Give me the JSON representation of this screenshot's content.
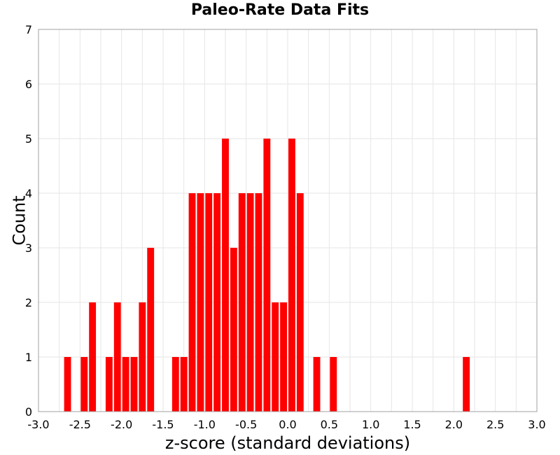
{
  "chart_data": {
    "type": "bar",
    "title": "Paleo-Rate Data Fits",
    "xlabel": "z-score (standard deviations)",
    "ylabel": "Count",
    "xlim": [
      -3.0,
      3.0
    ],
    "ylim": [
      0,
      7
    ],
    "xticks": [
      "-3.0",
      "-2.5",
      "-2.0",
      "-1.5",
      "-1.0",
      "-0.5",
      "0.0",
      "0.5",
      "1.0",
      "1.5",
      "2.0",
      "2.5",
      "3.0"
    ],
    "yticks": [
      "0",
      "1",
      "2",
      "3",
      "4",
      "5",
      "6",
      "7"
    ],
    "grid": true,
    "bar_color": "#ff0000",
    "bin_width": 0.1,
    "bins": [
      {
        "x": -2.65,
        "count": 1
      },
      {
        "x": -2.45,
        "count": 1
      },
      {
        "x": -2.35,
        "count": 2
      },
      {
        "x": -2.15,
        "count": 1
      },
      {
        "x": -2.05,
        "count": 2
      },
      {
        "x": -1.95,
        "count": 1
      },
      {
        "x": -1.85,
        "count": 1
      },
      {
        "x": -1.75,
        "count": 2
      },
      {
        "x": -1.65,
        "count": 3
      },
      {
        "x": -1.35,
        "count": 1
      },
      {
        "x": -1.25,
        "count": 1
      },
      {
        "x": -1.15,
        "count": 4
      },
      {
        "x": -1.05,
        "count": 4
      },
      {
        "x": -0.95,
        "count": 4
      },
      {
        "x": -0.85,
        "count": 4
      },
      {
        "x": -0.75,
        "count": 5
      },
      {
        "x": -0.65,
        "count": 3
      },
      {
        "x": -0.55,
        "count": 4
      },
      {
        "x": -0.45,
        "count": 4
      },
      {
        "x": -0.35,
        "count": 4
      },
      {
        "x": -0.25,
        "count": 5
      },
      {
        "x": -0.15,
        "count": 2
      },
      {
        "x": -0.05,
        "count": 2
      },
      {
        "x": 0.05,
        "count": 5
      },
      {
        "x": 0.15,
        "count": 4
      },
      {
        "x": 0.35,
        "count": 1
      },
      {
        "x": 0.55,
        "count": 1
      },
      {
        "x": 2.15,
        "count": 1
      }
    ]
  }
}
